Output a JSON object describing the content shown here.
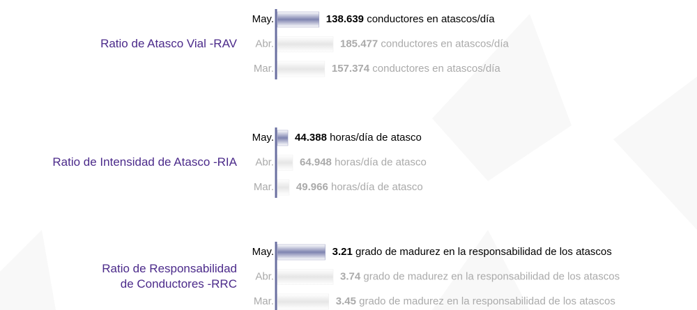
{
  "chart_data": [
    {
      "type": "bar",
      "title": [
        "Ratio de Atasco Vial -RAV"
      ],
      "categories": [
        "May.",
        "Abr.",
        "Mar."
      ],
      "values": [
        138639,
        185477,
        157374
      ],
      "value_labels": [
        "138.639",
        "185.477",
        "157.374"
      ],
      "unit": "conductores en atascos/día",
      "color": "#e6e6e6",
      "highlight_color": "#7f84b0"
    },
    {
      "type": "bar",
      "title": [
        "Ratio de Intensidad de Atasco -RIA"
      ],
      "categories": [
        "May.",
        "Abr.",
        "Mar."
      ],
      "values": [
        44388,
        64948,
        49966
      ],
      "value_labels": [
        "44.388",
        "64.948",
        "49.966"
      ],
      "unit": "horas/día de atasco",
      "color": "#e6e6e6",
      "highlight_color": "#7f84b0"
    },
    {
      "type": "bar",
      "title": [
        "Ratio de Responsabilidad",
        "de Conductores -RRC"
      ],
      "categories": [
        "May.",
        "Abr.",
        "Mar."
      ],
      "values": [
        3.21,
        3.74,
        3.45
      ],
      "unit": "grado de madurez en la responsabilidad de los atascos",
      "color": "#e6e6e6",
      "highlight_color": "#7f84b0"
    }
  ]
}
